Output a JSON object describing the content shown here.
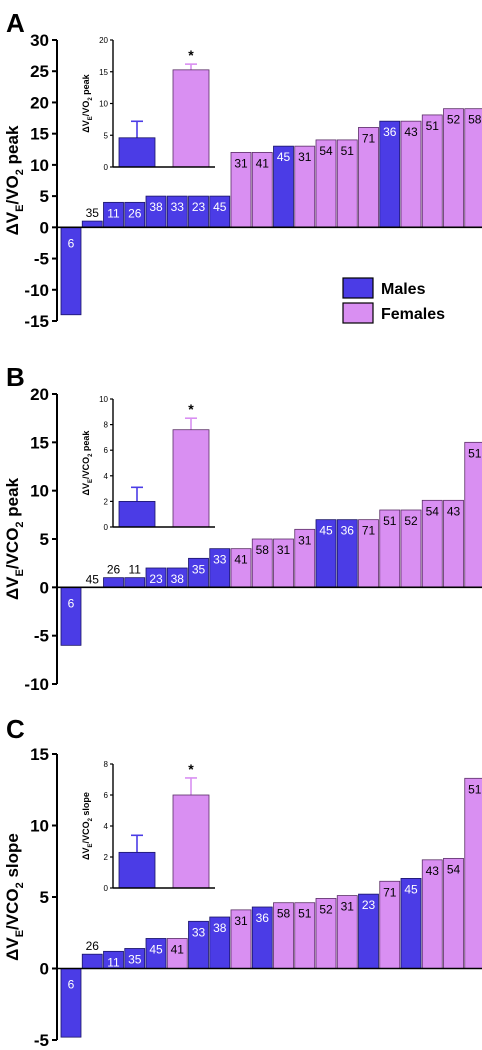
{
  "colors": {
    "male": "#4b3ce6",
    "female": "#d98ff2",
    "axis": "#000000"
  },
  "legend": {
    "placement": "right",
    "items": [
      {
        "label": "Males",
        "color": "#4b3ce6"
      },
      {
        "label": "Females",
        "color": "#d98ff2"
      }
    ]
  },
  "chart_data": [
    {
      "type": "bar",
      "panel": "A",
      "ylabel": "ΔVE/VO2 peak",
      "ylabel_parts": [
        "Δ",
        "V",
        "E",
        "/VO",
        "2",
        " peak"
      ],
      "ylim": [
        -15,
        30
      ],
      "yticks": [
        -15,
        -10,
        -5,
        0,
        5,
        10,
        15,
        20,
        25,
        30
      ],
      "ytick_labels": [
        "-15",
        "-10",
        "-5",
        "0",
        "5",
        "10",
        "15",
        "20",
        "25",
        "30"
      ],
      "bars": [
        {
          "label": "6",
          "value": -14,
          "sex": "M"
        },
        {
          "label": "35",
          "value": 1,
          "sex": "M"
        },
        {
          "label": "11",
          "value": 4,
          "sex": "M"
        },
        {
          "label": "26",
          "value": 4,
          "sex": "M"
        },
        {
          "label": "38",
          "value": 5,
          "sex": "M"
        },
        {
          "label": "33",
          "value": 5,
          "sex": "M"
        },
        {
          "label": "23",
          "value": 5,
          "sex": "M"
        },
        {
          "label": "45",
          "value": 5,
          "sex": "M"
        },
        {
          "label": "31",
          "value": 12,
          "sex": "F"
        },
        {
          "label": "41",
          "value": 12,
          "sex": "F"
        },
        {
          "label": "45",
          "value": 13,
          "sex": "M"
        },
        {
          "label": "31",
          "value": 13,
          "sex": "F"
        },
        {
          "label": "54",
          "value": 14,
          "sex": "F"
        },
        {
          "label": "51",
          "value": 14,
          "sex": "F"
        },
        {
          "label": "71",
          "value": 16,
          "sex": "F"
        },
        {
          "label": "36",
          "value": 17,
          "sex": "M"
        },
        {
          "label": "43",
          "value": 17,
          "sex": "F"
        },
        {
          "label": "51",
          "value": 18,
          "sex": "F"
        },
        {
          "label": "52",
          "value": 19,
          "sex": "F"
        },
        {
          "label": "58",
          "value": 19,
          "sex": "F"
        }
      ],
      "inset": {
        "ylabel": "ΔVE/VO2 peak",
        "ylabel_parts": [
          "Δ",
          "V",
          "E",
          "/VO",
          "2",
          " peak"
        ],
        "ylim": [
          0,
          20
        ],
        "yticks": [
          0,
          5,
          10,
          15,
          20
        ],
        "ytick_labels": [
          "0",
          "5",
          "10",
          "15",
          "20"
        ],
        "series": [
          {
            "name": "Males",
            "value": 4.6,
            "error": 2.6,
            "sex": "M"
          },
          {
            "name": "Females",
            "value": 15.3,
            "error": 0.9,
            "sex": "F"
          }
        ],
        "annotation": "*"
      }
    },
    {
      "type": "bar",
      "panel": "B",
      "ylabel": "ΔVE/VCO2 peak",
      "ylabel_parts": [
        "Δ",
        "V",
        "E",
        "/VCO",
        "2",
        " peak"
      ],
      "ylim": [
        -10,
        20
      ],
      "yticks": [
        -10,
        -5,
        0,
        5,
        10,
        15,
        20
      ],
      "ytick_labels": [
        "-10",
        "-5",
        "0",
        "5",
        "10",
        "15",
        "20"
      ],
      "bars": [
        {
          "label": "6",
          "value": -6,
          "sex": "M"
        },
        {
          "label": "45",
          "value": 0,
          "sex": "M"
        },
        {
          "label": "26",
          "value": 1,
          "sex": "M"
        },
        {
          "label": "11",
          "value": 1,
          "sex": "M"
        },
        {
          "label": "23",
          "value": 2,
          "sex": "M"
        },
        {
          "label": "38",
          "value": 2,
          "sex": "M"
        },
        {
          "label": "35",
          "value": 3,
          "sex": "M"
        },
        {
          "label": "33",
          "value": 4,
          "sex": "M"
        },
        {
          "label": "41",
          "value": 4,
          "sex": "F"
        },
        {
          "label": "58",
          "value": 5,
          "sex": "F"
        },
        {
          "label": "31",
          "value": 5,
          "sex": "F"
        },
        {
          "label": "31",
          "value": 6,
          "sex": "F"
        },
        {
          "label": "45",
          "value": 7,
          "sex": "M"
        },
        {
          "label": "36",
          "value": 7,
          "sex": "M"
        },
        {
          "label": "71",
          "value": 7,
          "sex": "F"
        },
        {
          "label": "51",
          "value": 8,
          "sex": "F"
        },
        {
          "label": "52",
          "value": 8,
          "sex": "F"
        },
        {
          "label": "54",
          "value": 9,
          "sex": "F"
        },
        {
          "label": "43",
          "value": 9,
          "sex": "F"
        },
        {
          "label": "51",
          "value": 15,
          "sex": "F"
        }
      ],
      "inset": {
        "ylabel": "ΔVE/VCO2 peak",
        "ylabel_parts": [
          "Δ",
          "V",
          "E",
          "/VCO",
          "2",
          " peak"
        ],
        "ylim": [
          0,
          10
        ],
        "yticks": [
          0,
          2,
          4,
          6,
          8,
          10
        ],
        "ytick_labels": [
          "0",
          "2",
          "4",
          "6",
          "8",
          "10"
        ],
        "series": [
          {
            "name": "Males",
            "value": 2.0,
            "error": 1.1,
            "sex": "M"
          },
          {
            "name": "Females",
            "value": 7.6,
            "error": 0.9,
            "sex": "F"
          }
        ],
        "annotation": "*"
      }
    },
    {
      "type": "bar",
      "panel": "C",
      "ylabel": "ΔVE/VCO2 slope",
      "ylabel_parts": [
        "Δ",
        "V",
        "E",
        "/VCO",
        "2",
        " slope"
      ],
      "ylim": [
        -5,
        15
      ],
      "yticks": [
        -5,
        0,
        5,
        10,
        15
      ],
      "ytick_labels": [
        "-5",
        "0",
        "5",
        "10",
        "15"
      ],
      "bars": [
        {
          "label": "6",
          "value": -4.8,
          "sex": "M"
        },
        {
          "label": "26",
          "value": 1.0,
          "sex": "M"
        },
        {
          "label": "11",
          "value": 1.2,
          "sex": "M"
        },
        {
          "label": "35",
          "value": 1.4,
          "sex": "M"
        },
        {
          "label": "45",
          "value": 2.1,
          "sex": "M"
        },
        {
          "label": "41",
          "value": 2.1,
          "sex": "F"
        },
        {
          "label": "33",
          "value": 3.3,
          "sex": "M"
        },
        {
          "label": "38",
          "value": 3.6,
          "sex": "M"
        },
        {
          "label": "31",
          "value": 4.1,
          "sex": "F"
        },
        {
          "label": "36",
          "value": 4.3,
          "sex": "M"
        },
        {
          "label": "58",
          "value": 4.6,
          "sex": "F"
        },
        {
          "label": "51",
          "value": 4.6,
          "sex": "F"
        },
        {
          "label": "52",
          "value": 4.9,
          "sex": "F"
        },
        {
          "label": "31",
          "value": 5.1,
          "sex": "F"
        },
        {
          "label": "23",
          "value": 5.2,
          "sex": "M"
        },
        {
          "label": "71",
          "value": 6.1,
          "sex": "F"
        },
        {
          "label": "45",
          "value": 6.3,
          "sex": "M"
        },
        {
          "label": "43",
          "value": 7.6,
          "sex": "F"
        },
        {
          "label": "54",
          "value": 7.7,
          "sex": "F"
        },
        {
          "label": "51",
          "value": 13.3,
          "sex": "F"
        }
      ],
      "inset": {
        "ylabel": "ΔVE/VCO2 slope",
        "ylabel_parts": [
          "Δ",
          "V",
          "E",
          "/VCO",
          "2",
          " slope"
        ],
        "ylim": [
          0,
          8
        ],
        "yticks": [
          0,
          2,
          4,
          6,
          8
        ],
        "ytick_labels": [
          "0",
          "2",
          "4",
          "6",
          "8"
        ],
        "series": [
          {
            "name": "Males",
            "value": 2.3,
            "error": 1.1,
            "sex": "M"
          },
          {
            "name": "Females",
            "value": 6.0,
            "error": 1.1,
            "sex": "F"
          }
        ],
        "annotation": "*"
      }
    }
  ]
}
